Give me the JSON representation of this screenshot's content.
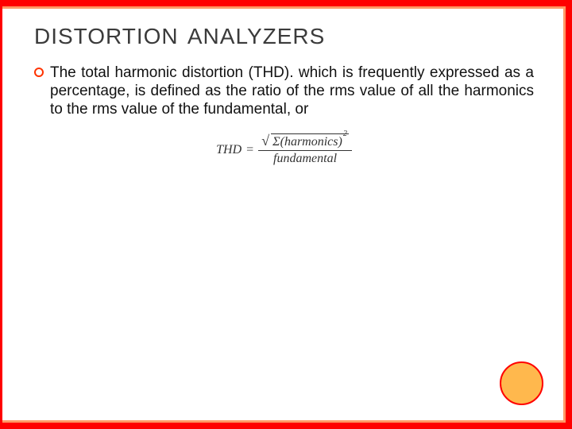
{
  "slide": {
    "title": "DISTORTION  ANALYZERS",
    "bullet_icon": "ring-bullet",
    "paragraph": "The total harmonic distortion (THD). which is frequently expressed as a percentage, is defined as the ratio of the rms value of all the harmonics to the rms value of the fundamental, or",
    "formula": {
      "lhs": "THD",
      "equals": "=",
      "numerator_sigma": "Σ",
      "numerator_open": "(",
      "numerator_word": "harmonics",
      "numerator_close": ")",
      "numerator_power": "2",
      "denominator": "fundamental"
    }
  },
  "colors": {
    "outer_border": "#ff0000",
    "inner_border": "#ff9966",
    "bullet_border": "#ff3300",
    "deco_fill": "#ffb84d",
    "deco_border": "#ff0000",
    "title_text": "#3b3b3b",
    "body_text": "#111111",
    "background": "#ffffff"
  }
}
